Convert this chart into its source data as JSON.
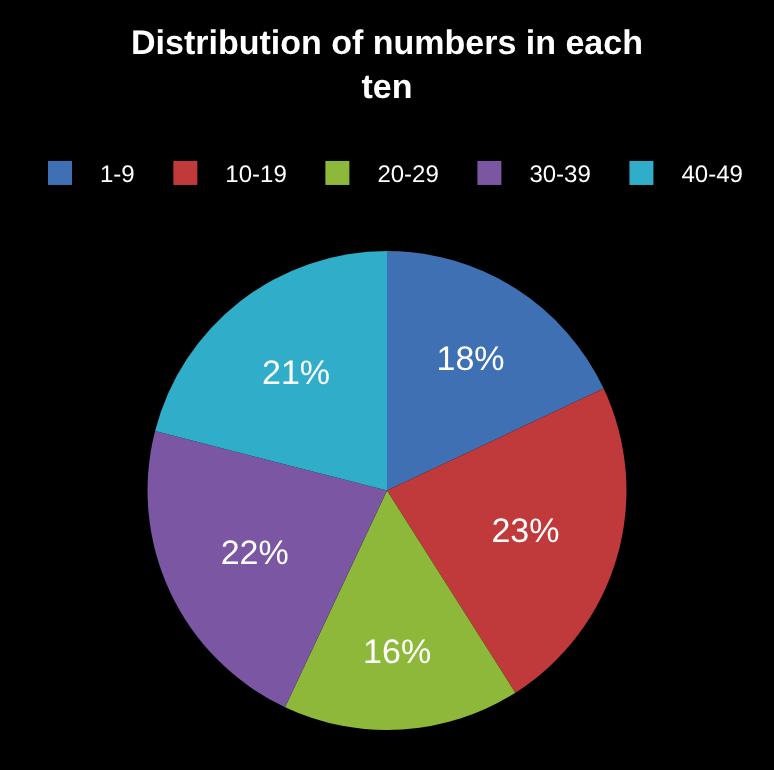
{
  "chart_data": {
    "type": "pie",
    "title": "Distribution of numbers in each ten",
    "categories": [
      "1-9",
      "10-19",
      "20-29",
      "30-39",
      "40-49"
    ],
    "values": [
      18,
      23,
      16,
      22,
      21
    ],
    "value_labels": [
      "18%",
      "23%",
      "16%",
      "22%",
      "21%"
    ],
    "colors": [
      "#3f70b3",
      "#c0393b",
      "#8db83a",
      "#7a56a3",
      "#2fadc9"
    ],
    "legend": "top"
  }
}
